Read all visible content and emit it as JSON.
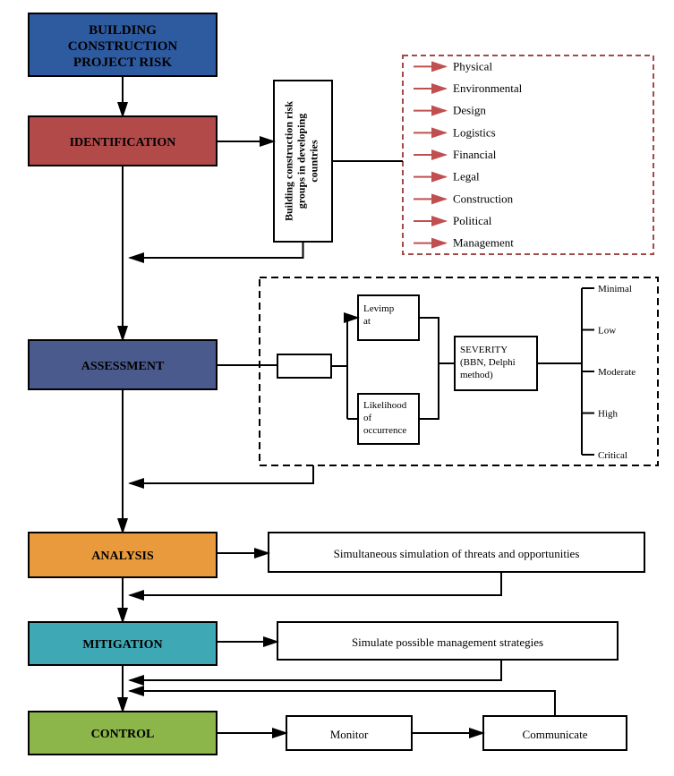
{
  "diagram": {
    "type": "flowchart",
    "background": "#ffffff",
    "nodes": {
      "root": {
        "label_lines": [
          "BUILDING",
          "CONSTRUCTION",
          "PROJECT RISK"
        ],
        "fill": "#2e5aa0",
        "text_color": "#000000",
        "font_size": 15,
        "font_weight": "bold"
      },
      "identification": {
        "label": "IDENTIFICATION",
        "fill": "#b24a4a",
        "text_color": "#000000",
        "font_size": 14,
        "font_weight": "bold"
      },
      "assessment": {
        "label": "ASSESSMENT",
        "fill": "#4a5a8c",
        "text_color": "#000000",
        "font_size": 14,
        "font_weight": "bold"
      },
      "analysis": {
        "label": "ANALYSIS",
        "fill": "#e89a3c",
        "text_color": "#000000",
        "font_size": 14,
        "font_weight": "bold"
      },
      "mitigation": {
        "label": "MITIGATION",
        "fill": "#3fa8b5",
        "text_color": "#000000",
        "font_size": 14,
        "font_weight": "bold"
      },
      "control": {
        "label": "CONTROL",
        "fill": "#8cb54a",
        "text_color": "#000000",
        "font_size": 14,
        "font_weight": "bold"
      },
      "risk_groups_vertical": {
        "label_lines": [
          "Building construction risk",
          "groups in developing",
          "countries"
        ],
        "fill": "#ffffff",
        "font_size": 12,
        "font_weight": "bold"
      },
      "severity": {
        "label_lines": [
          "SEVERITY",
          "(BBN, Delphi",
          "method)"
        ],
        "fill": "#ffffff",
        "font_size": 11
      },
      "levimpat": {
        "label_lines": [
          "Levimp",
          "at"
        ],
        "fill": "#ffffff",
        "font_size": 11
      },
      "likelihood": {
        "label_lines": [
          "Likelihood",
          "of",
          "occurrence"
        ],
        "fill": "#ffffff",
        "font_size": 11
      },
      "small_empty": {
        "fill": "#ffffff"
      },
      "analysis_text": {
        "label": "Simultaneous simulation of threats and opportunities",
        "fill": "#ffffff",
        "font_size": 13
      },
      "mitigation_text": {
        "label": "Simulate possible management strategies",
        "fill": "#ffffff",
        "font_size": 13
      },
      "monitor": {
        "label": "Monitor",
        "fill": "#ffffff",
        "font_size": 13
      },
      "communicate": {
        "label": "Communicate",
        "fill": "#ffffff",
        "font_size": 13
      }
    },
    "risk_categories": {
      "items": [
        "Physical",
        "Environmental",
        "Design",
        "Logistics",
        "Financial",
        "Legal",
        "Construction",
        "Political",
        "Management"
      ],
      "arrow_color": "#c05050",
      "text_color": "#000000",
      "font_size": 13,
      "border_color": "#a14a4a"
    },
    "severity_levels": {
      "items": [
        "Minimal",
        "Low",
        "Moderate",
        "High",
        "Critical"
      ],
      "text_color": "#000000",
      "font_size": 11
    },
    "line_color": "#000000",
    "arrow_head_size": 10
  }
}
